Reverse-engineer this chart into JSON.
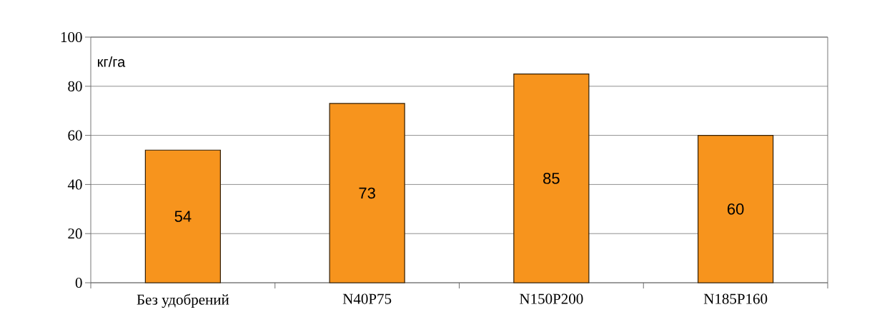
{
  "chart_data": {
    "type": "bar",
    "ylabel": "кг/га",
    "categories": [
      "Без удобрений",
      "N40P75",
      "N150P200",
      "N185P160"
    ],
    "values": [
      54,
      73,
      85,
      60
    ],
    "color": "#f7941d",
    "data_labels": true,
    "ylim": [
      0,
      100
    ],
    "yticks": [
      0,
      20,
      40,
      60,
      80,
      100
    ],
    "grid": "y"
  }
}
